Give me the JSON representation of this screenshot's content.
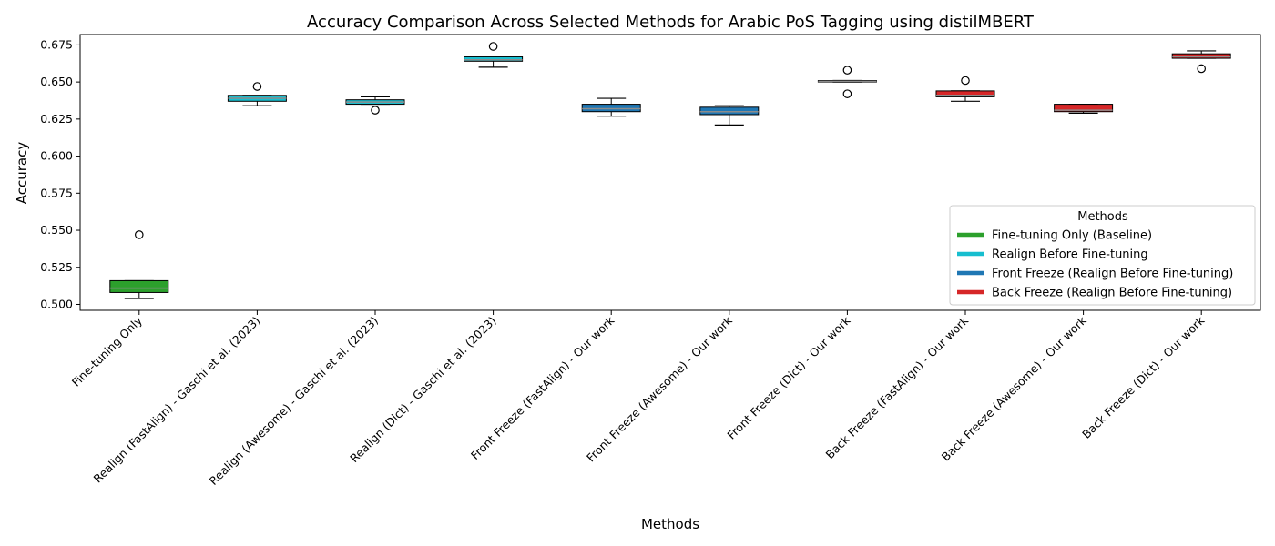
{
  "chart_data": {
    "type": "box",
    "title": "Accuracy Comparison Across Selected Methods for Arabic PoS Tagging using distilMBERT",
    "xlabel": "Methods",
    "ylabel": "Accuracy",
    "ylim": [
      0.496,
      0.682
    ],
    "yticks": [
      "0.500",
      "0.525",
      "0.550",
      "0.575",
      "0.600",
      "0.625",
      "0.650",
      "0.675"
    ],
    "grid": false,
    "legend": {
      "title": "Methods",
      "placement": "lower-right",
      "entries": [
        {
          "label": "Fine-tuning Only (Baseline)",
          "color": "#2ca02c"
        },
        {
          "label": "Realign Before Fine-tuning",
          "color": "#17becf"
        },
        {
          "label": "Front Freeze (Realign Before Fine-tuning)",
          "color": "#1f77b4"
        },
        {
          "label": "Back Freeze (Realign Before Fine-tuning)",
          "color": "#d62728"
        }
      ]
    },
    "boxes": [
      {
        "category": "Fine-tuning Only",
        "color": "#2ca02c",
        "whisker_low": 0.504,
        "q1": 0.508,
        "median": 0.511,
        "q3": 0.516,
        "whisker_high": 0.516,
        "outliers": [
          0.547
        ]
      },
      {
        "category": "Realign (FastAlign) - Gaschi et al. (2023)",
        "color": "#17becf",
        "whisker_low": 0.634,
        "q1": 0.637,
        "median": 0.639,
        "q3": 0.641,
        "whisker_high": 0.641,
        "outliers": [
          0.647
        ]
      },
      {
        "category": "Realign (Awesome) - Gaschi et al. (2023)",
        "color": "#17becf",
        "whisker_low": 0.635,
        "q1": 0.635,
        "median": 0.6365,
        "q3": 0.638,
        "whisker_high": 0.64,
        "outliers": [
          0.631
        ]
      },
      {
        "category": "Realign (Dict) - Gaschi et al. (2023)",
        "color": "#17becf",
        "whisker_low": 0.66,
        "q1": 0.664,
        "median": 0.665,
        "q3": 0.667,
        "whisker_high": 0.667,
        "outliers": [
          0.674
        ]
      },
      {
        "category": "Front Freeze (FastAlign) - Our work",
        "color": "#1f77b4",
        "whisker_low": 0.627,
        "q1": 0.63,
        "median": 0.632,
        "q3": 0.635,
        "whisker_high": 0.639,
        "outliers": []
      },
      {
        "category": "Front Freeze (Awesome) - Our work",
        "color": "#1f77b4",
        "whisker_low": 0.621,
        "q1": 0.628,
        "median": 0.63,
        "q3": 0.633,
        "whisker_high": 0.634,
        "outliers": []
      },
      {
        "category": "Front Freeze (Dict) - Our work",
        "color": "#1f77b4",
        "whisker_low": 0.65,
        "q1": 0.65,
        "median": 0.6505,
        "q3": 0.651,
        "whisker_high": 0.651,
        "outliers": [
          0.658,
          0.642
        ]
      },
      {
        "category": "Back Freeze (FastAlign) - Our work",
        "color": "#d62728",
        "whisker_low": 0.637,
        "q1": 0.64,
        "median": 0.641,
        "q3": 0.644,
        "whisker_high": 0.644,
        "outliers": [
          0.651
        ]
      },
      {
        "category": "Back Freeze (Awesome) - Our work",
        "color": "#d62728",
        "whisker_low": 0.629,
        "q1": 0.63,
        "median": 0.631,
        "q3": 0.635,
        "whisker_high": 0.635,
        "outliers": []
      },
      {
        "category": "Back Freeze (Dict) - Our work",
        "color": "#d62728",
        "whisker_low": 0.666,
        "q1": 0.666,
        "median": 0.667,
        "q3": 0.669,
        "whisker_high": 0.671,
        "outliers": [
          0.659
        ]
      }
    ]
  }
}
